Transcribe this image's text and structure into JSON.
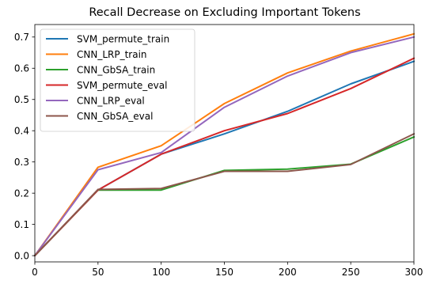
{
  "chart_data": {
    "type": "line",
    "title": "Recall Decrease on Excluding Important Tokens",
    "xlabel": "",
    "ylabel": "",
    "x": [
      0,
      50,
      100,
      150,
      200,
      250,
      300
    ],
    "xlim": [
      0,
      300
    ],
    "ylim": [
      -0.02,
      0.74
    ],
    "xticks": [
      0,
      50,
      100,
      150,
      200,
      250,
      300
    ],
    "yticks": [
      0.0,
      0.1,
      0.2,
      0.3,
      0.4,
      0.5,
      0.6,
      0.7
    ],
    "ytick_labels": [
      "0.0",
      "0.1",
      "0.2",
      "0.3",
      "0.4",
      "0.5",
      "0.6",
      "0.7"
    ],
    "grid": false,
    "legend_position": "top-left",
    "series": [
      {
        "name": "SVM_permute_train",
        "color": "#1f77b4",
        "values": [
          0.0,
          0.21,
          0.325,
          0.39,
          0.462,
          0.55,
          0.622
        ]
      },
      {
        "name": "CNN_LRP_train",
        "color": "#ff7f0e",
        "values": [
          0.0,
          0.283,
          0.352,
          0.487,
          0.585,
          0.655,
          0.71
        ]
      },
      {
        "name": "CNN_GbSA_train",
        "color": "#2ca02c",
        "values": [
          0.0,
          0.21,
          0.21,
          0.273,
          0.277,
          0.293,
          0.38
        ]
      },
      {
        "name": "SVM_permute_eval",
        "color": "#d62728",
        "values": [
          0.0,
          0.21,
          0.325,
          0.4,
          0.455,
          0.535,
          0.632
        ]
      },
      {
        "name": "CNN_LRP_eval",
        "color": "#9467bd",
        "values": [
          0.0,
          0.275,
          0.33,
          0.475,
          0.575,
          0.65,
          0.7
        ]
      },
      {
        "name": "CNN_GbSA_eval",
        "color": "#8c564b",
        "values": [
          0.0,
          0.212,
          0.215,
          0.27,
          0.27,
          0.292,
          0.39
        ]
      }
    ]
  }
}
